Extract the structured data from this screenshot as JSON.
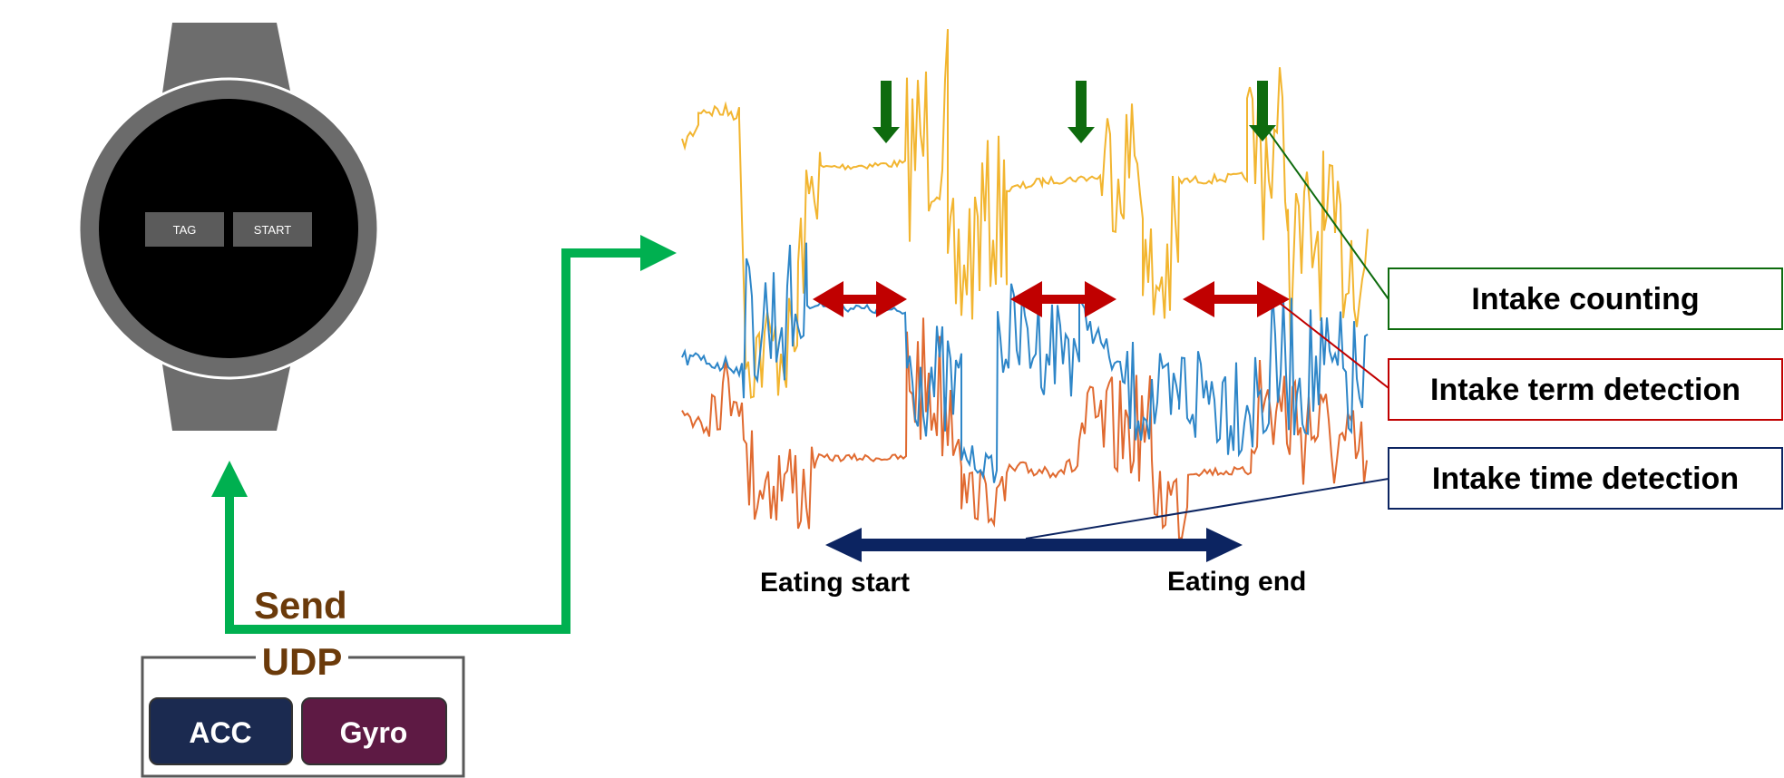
{
  "watch": {
    "buttons": [
      {
        "label": "TAG"
      },
      {
        "label": "START"
      }
    ]
  },
  "transfer": {
    "send_label": "Send",
    "protocol_label": "UDP",
    "sensors": [
      {
        "label": "ACC",
        "color": "#1b2a50"
      },
      {
        "label": "Gyro",
        "color": "#5e1a44"
      }
    ],
    "arrow_color": "#00b050",
    "label_color": "#6b3a0a"
  },
  "signal_plot": {
    "series_colors": {
      "yellow": "#f2b530",
      "blue": "#2e86c8",
      "orange": "#e06a30"
    },
    "eating_start_label": "Eating start",
    "eating_end_label": "Eating end"
  },
  "legend": {
    "items": [
      {
        "label": "Intake counting",
        "color": "#0e6b0e"
      },
      {
        "label": "Intake term detection",
        "color": "#c00000"
      },
      {
        "label": "Intake time detection",
        "color": "#0c2461"
      }
    ]
  }
}
